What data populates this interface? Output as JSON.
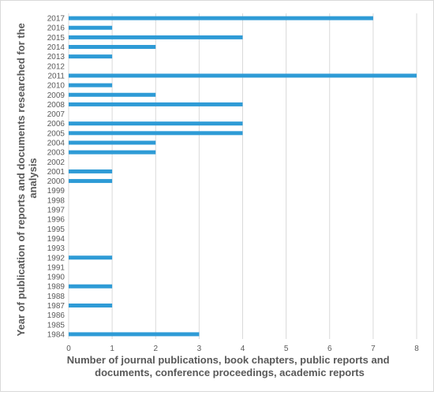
{
  "chart_data": {
    "type": "bar",
    "orientation": "horizontal",
    "title": "",
    "xlabel_lines": [
      "Number of journal publications, book chapters, public reports and",
      "documents, conference proceedings, academic reports"
    ],
    "ylabel_lines": [
      "Year of publication of reports and documents  researched for the",
      "analysis"
    ],
    "xlim": [
      0,
      8
    ],
    "xticks": [
      "0",
      "1",
      "2",
      "3",
      "4",
      "5",
      "6",
      "7",
      "8"
    ],
    "grid": "vertical",
    "legend": "none",
    "bar_color": "#2e9bd6",
    "grid_color": "#d9d9d9",
    "categories": [
      "2017",
      "2016",
      "2015",
      "2014",
      "2013",
      "2012",
      "2011",
      "2010",
      "2009",
      "2008",
      "2007",
      "2006",
      "2005",
      "2004",
      "2003",
      "2002",
      "2001",
      "2000",
      "1999",
      "1998",
      "1997",
      "1996",
      "1995",
      "1994",
      "1993",
      "1992",
      "1991",
      "1990",
      "1989",
      "1988",
      "1987",
      "1986",
      "1985",
      "1984"
    ],
    "values": [
      7,
      1,
      4,
      2,
      1,
      0,
      8,
      1,
      2,
      4,
      0,
      4,
      4,
      2,
      2,
      0,
      1,
      1,
      0,
      0,
      0,
      0,
      0,
      0,
      0,
      1,
      0,
      0,
      1,
      0,
      1,
      0,
      0,
      3
    ]
  }
}
